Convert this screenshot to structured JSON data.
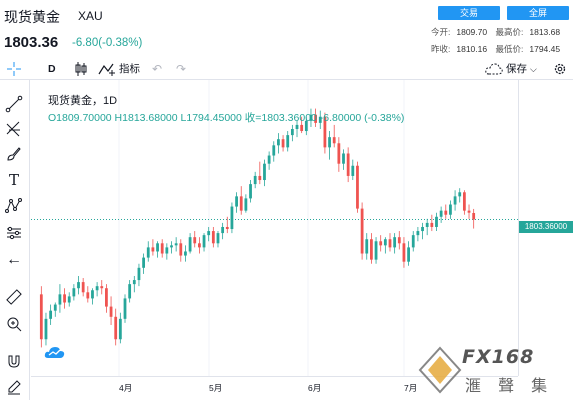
{
  "header": {
    "symbol_name": "现货黄金",
    "symbol_code": "XAU",
    "price": "1803.36",
    "change": "-6.80(-0.38%)",
    "trade_button": "交易",
    "fullscreen_button": "全屏",
    "open_label": "今开:",
    "open_value": "1809.70",
    "high_label": "最高价:",
    "high_value": "1813.68",
    "prev_label": "昨收:",
    "prev_value": "1810.16",
    "low_label": "最低价:",
    "low_value": "1794.45"
  },
  "toolbar": {
    "interval": "D",
    "indicators_label": "指标",
    "save_label": "保存"
  },
  "legend": {
    "title": "现货黄金，1D",
    "ohlc": "O1809.70000   H1813.68000   L1794.45000   收=1803.36000   -6.80000 (-0.38%)"
  },
  "price_tag": "1803.36000",
  "months": [
    "4月",
    "5月",
    "6月",
    "7月"
  ],
  "watermark": {
    "brand": "FX168",
    "name": "滙 聲 集 團"
  },
  "colors": {
    "up": "#26a69a",
    "down": "#ef5350",
    "accent": "#2196f3"
  },
  "chart_data": {
    "type": "candlestick",
    "interval": "1D",
    "ohlc": [
      {
        "o": 1730,
        "h": 1738,
        "l": 1678,
        "c": 1686
      },
      {
        "o": 1686,
        "h": 1712,
        "l": 1680,
        "c": 1706
      },
      {
        "o": 1706,
        "h": 1720,
        "l": 1700,
        "c": 1714
      },
      {
        "o": 1714,
        "h": 1722,
        "l": 1708,
        "c": 1720
      },
      {
        "o": 1720,
        "h": 1740,
        "l": 1712,
        "c": 1730
      },
      {
        "o": 1730,
        "h": 1736,
        "l": 1716,
        "c": 1722
      },
      {
        "o": 1722,
        "h": 1732,
        "l": 1718,
        "c": 1728
      },
      {
        "o": 1728,
        "h": 1740,
        "l": 1724,
        "c": 1736
      },
      {
        "o": 1736,
        "h": 1748,
        "l": 1730,
        "c": 1742
      },
      {
        "o": 1742,
        "h": 1746,
        "l": 1728,
        "c": 1732
      },
      {
        "o": 1732,
        "h": 1738,
        "l": 1722,
        "c": 1726
      },
      {
        "o": 1726,
        "h": 1736,
        "l": 1720,
        "c": 1734
      },
      {
        "o": 1734,
        "h": 1742,
        "l": 1728,
        "c": 1738
      },
      {
        "o": 1738,
        "h": 1744,
        "l": 1730,
        "c": 1736
      },
      {
        "o": 1736,
        "h": 1740,
        "l": 1712,
        "c": 1718
      },
      {
        "o": 1718,
        "h": 1728,
        "l": 1700,
        "c": 1708
      },
      {
        "o": 1708,
        "h": 1716,
        "l": 1680,
        "c": 1686
      },
      {
        "o": 1686,
        "h": 1712,
        "l": 1682,
        "c": 1706
      },
      {
        "o": 1706,
        "h": 1730,
        "l": 1702,
        "c": 1726
      },
      {
        "o": 1726,
        "h": 1744,
        "l": 1722,
        "c": 1740
      },
      {
        "o": 1740,
        "h": 1748,
        "l": 1732,
        "c": 1744
      },
      {
        "o": 1744,
        "h": 1760,
        "l": 1738,
        "c": 1756
      },
      {
        "o": 1756,
        "h": 1770,
        "l": 1750,
        "c": 1766
      },
      {
        "o": 1766,
        "h": 1782,
        "l": 1762,
        "c": 1776
      },
      {
        "o": 1776,
        "h": 1784,
        "l": 1768,
        "c": 1772
      },
      {
        "o": 1772,
        "h": 1782,
        "l": 1766,
        "c": 1780
      },
      {
        "o": 1780,
        "h": 1784,
        "l": 1766,
        "c": 1770
      },
      {
        "o": 1770,
        "h": 1780,
        "l": 1764,
        "c": 1776
      },
      {
        "o": 1776,
        "h": 1782,
        "l": 1770,
        "c": 1778
      },
      {
        "o": 1778,
        "h": 1786,
        "l": 1772,
        "c": 1780
      },
      {
        "o": 1780,
        "h": 1784,
        "l": 1762,
        "c": 1768
      },
      {
        "o": 1768,
        "h": 1778,
        "l": 1762,
        "c": 1772
      },
      {
        "o": 1772,
        "h": 1790,
        "l": 1770,
        "c": 1786
      },
      {
        "o": 1786,
        "h": 1792,
        "l": 1776,
        "c": 1780
      },
      {
        "o": 1780,
        "h": 1786,
        "l": 1770,
        "c": 1776
      },
      {
        "o": 1776,
        "h": 1790,
        "l": 1772,
        "c": 1788
      },
      {
        "o": 1788,
        "h": 1796,
        "l": 1782,
        "c": 1792
      },
      {
        "o": 1792,
        "h": 1796,
        "l": 1776,
        "c": 1780
      },
      {
        "o": 1780,
        "h": 1792,
        "l": 1776,
        "c": 1790
      },
      {
        "o": 1790,
        "h": 1800,
        "l": 1784,
        "c": 1796
      },
      {
        "o": 1796,
        "h": 1806,
        "l": 1790,
        "c": 1794
      },
      {
        "o": 1794,
        "h": 1820,
        "l": 1790,
        "c": 1816
      },
      {
        "o": 1816,
        "h": 1830,
        "l": 1810,
        "c": 1826
      },
      {
        "o": 1826,
        "h": 1836,
        "l": 1808,
        "c": 1812
      },
      {
        "o": 1812,
        "h": 1828,
        "l": 1810,
        "c": 1824
      },
      {
        "o": 1824,
        "h": 1842,
        "l": 1820,
        "c": 1838
      },
      {
        "o": 1838,
        "h": 1850,
        "l": 1834,
        "c": 1846
      },
      {
        "o": 1846,
        "h": 1860,
        "l": 1838,
        "c": 1842
      },
      {
        "o": 1842,
        "h": 1862,
        "l": 1836,
        "c": 1858
      },
      {
        "o": 1858,
        "h": 1870,
        "l": 1852,
        "c": 1866
      },
      {
        "o": 1866,
        "h": 1880,
        "l": 1860,
        "c": 1876
      },
      {
        "o": 1876,
        "h": 1888,
        "l": 1868,
        "c": 1882
      },
      {
        "o": 1882,
        "h": 1886,
        "l": 1870,
        "c": 1874
      },
      {
        "o": 1874,
        "h": 1890,
        "l": 1870,
        "c": 1886
      },
      {
        "o": 1886,
        "h": 1896,
        "l": 1880,
        "c": 1892
      },
      {
        "o": 1892,
        "h": 1900,
        "l": 1884,
        "c": 1896
      },
      {
        "o": 1896,
        "h": 1904,
        "l": 1888,
        "c": 1890
      },
      {
        "o": 1890,
        "h": 1904,
        "l": 1886,
        "c": 1900
      },
      {
        "o": 1900,
        "h": 1912,
        "l": 1894,
        "c": 1906
      },
      {
        "o": 1906,
        "h": 1912,
        "l": 1894,
        "c": 1898
      },
      {
        "o": 1898,
        "h": 1910,
        "l": 1892,
        "c": 1904
      },
      {
        "o": 1904,
        "h": 1908,
        "l": 1868,
        "c": 1874
      },
      {
        "o": 1874,
        "h": 1890,
        "l": 1862,
        "c": 1884
      },
      {
        "o": 1884,
        "h": 1896,
        "l": 1874,
        "c": 1878
      },
      {
        "o": 1878,
        "h": 1884,
        "l": 1850,
        "c": 1858
      },
      {
        "o": 1858,
        "h": 1872,
        "l": 1852,
        "c": 1868
      },
      {
        "o": 1868,
        "h": 1874,
        "l": 1840,
        "c": 1846
      },
      {
        "o": 1846,
        "h": 1862,
        "l": 1842,
        "c": 1856
      },
      {
        "o": 1856,
        "h": 1860,
        "l": 1810,
        "c": 1814
      },
      {
        "o": 1814,
        "h": 1820,
        "l": 1764,
        "c": 1770
      },
      {
        "o": 1770,
        "h": 1790,
        "l": 1764,
        "c": 1784
      },
      {
        "o": 1784,
        "h": 1790,
        "l": 1760,
        "c": 1764
      },
      {
        "o": 1764,
        "h": 1786,
        "l": 1760,
        "c": 1782
      },
      {
        "o": 1782,
        "h": 1788,
        "l": 1772,
        "c": 1778
      },
      {
        "o": 1778,
        "h": 1786,
        "l": 1770,
        "c": 1784
      },
      {
        "o": 1784,
        "h": 1790,
        "l": 1772,
        "c": 1776
      },
      {
        "o": 1776,
        "h": 1790,
        "l": 1770,
        "c": 1786
      },
      {
        "o": 1786,
        "h": 1792,
        "l": 1774,
        "c": 1780
      },
      {
        "o": 1780,
        "h": 1786,
        "l": 1756,
        "c": 1762
      },
      {
        "o": 1762,
        "h": 1782,
        "l": 1758,
        "c": 1776
      },
      {
        "o": 1776,
        "h": 1792,
        "l": 1772,
        "c": 1788
      },
      {
        "o": 1788,
        "h": 1796,
        "l": 1782,
        "c": 1792
      },
      {
        "o": 1792,
        "h": 1800,
        "l": 1784,
        "c": 1796
      },
      {
        "o": 1796,
        "h": 1804,
        "l": 1788,
        "c": 1800
      },
      {
        "o": 1800,
        "h": 1808,
        "l": 1792,
        "c": 1796
      },
      {
        "o": 1796,
        "h": 1810,
        "l": 1792,
        "c": 1806
      },
      {
        "o": 1806,
        "h": 1816,
        "l": 1800,
        "c": 1812
      },
      {
        "o": 1812,
        "h": 1818,
        "l": 1804,
        "c": 1808
      },
      {
        "o": 1808,
        "h": 1822,
        "l": 1804,
        "c": 1818
      },
      {
        "o": 1818,
        "h": 1832,
        "l": 1812,
        "c": 1826
      },
      {
        "o": 1826,
        "h": 1834,
        "l": 1820,
        "c": 1830
      },
      {
        "o": 1830,
        "h": 1832,
        "l": 1808,
        "c": 1812
      },
      {
        "o": 1812,
        "h": 1818,
        "l": 1804,
        "c": 1810
      },
      {
        "o": 1809.7,
        "h": 1813.68,
        "l": 1794.45,
        "c": 1803.36
      }
    ],
    "last_price": 1803.36,
    "x_ticks": [
      "4月",
      "5月",
      "6月",
      "7月"
    ]
  }
}
